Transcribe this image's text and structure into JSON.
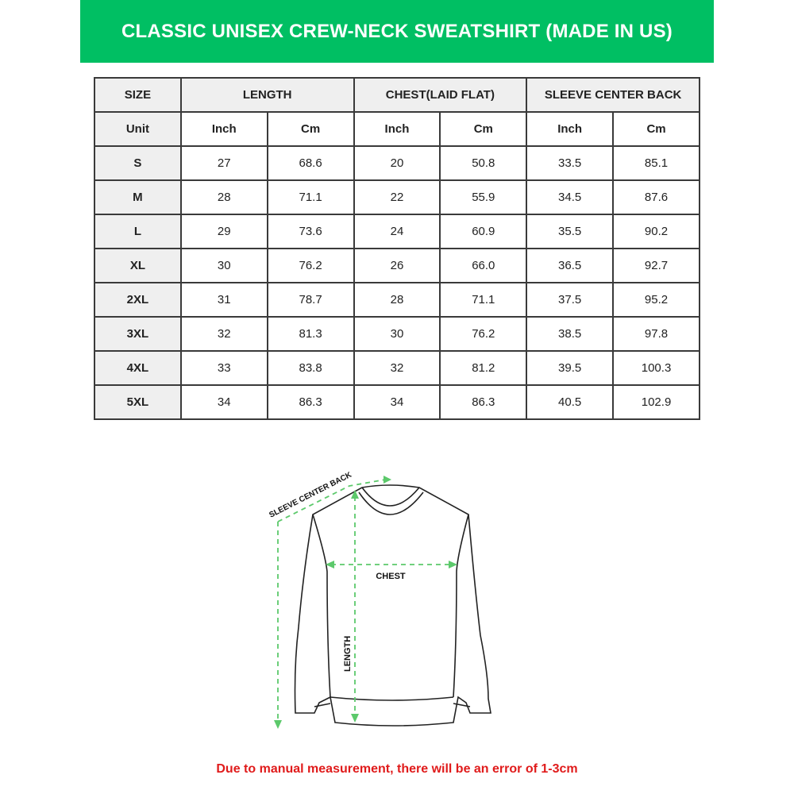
{
  "title": "CLASSIC UNISEX CREW-NECK SWEATSHIRT (MADE IN US)",
  "colors": {
    "banner": "#00bf63",
    "note": "#e01b1b",
    "arrows": "#5cc96b"
  },
  "table": {
    "headers": [
      "SIZE",
      "LENGTH",
      "CHEST(LAID FLAT)",
      "SLEEVE CENTER BACK"
    ],
    "unit_row": [
      "Unit",
      "Inch",
      "Cm",
      "Inch",
      "Cm",
      "Inch",
      "Cm"
    ],
    "rows": [
      [
        "S",
        "27",
        "68.6",
        "20",
        "50.8",
        "33.5",
        "85.1"
      ],
      [
        "M",
        "28",
        "71.1",
        "22",
        "55.9",
        "34.5",
        "87.6"
      ],
      [
        "L",
        "29",
        "73.6",
        "24",
        "60.9",
        "35.5",
        "90.2"
      ],
      [
        "XL",
        "30",
        "76.2",
        "26",
        "66.0",
        "36.5",
        "92.7"
      ],
      [
        "2XL",
        "31",
        "78.7",
        "28",
        "71.1",
        "37.5",
        "95.2"
      ],
      [
        "3XL",
        "32",
        "81.3",
        "30",
        "76.2",
        "38.5",
        "97.8"
      ],
      [
        "4XL",
        "33",
        "83.8",
        "32",
        "81.2",
        "39.5",
        "100.3"
      ],
      [
        "5XL",
        "34",
        "86.3",
        "34",
        "86.3",
        "40.5",
        "102.9"
      ]
    ]
  },
  "diagram": {
    "sleeve_label": "SLEEVE CENTER BACK",
    "chest_label": "CHEST",
    "length_label": "LENGTH"
  },
  "note": "Due to manual measurement, there will be an error of 1-3cm"
}
